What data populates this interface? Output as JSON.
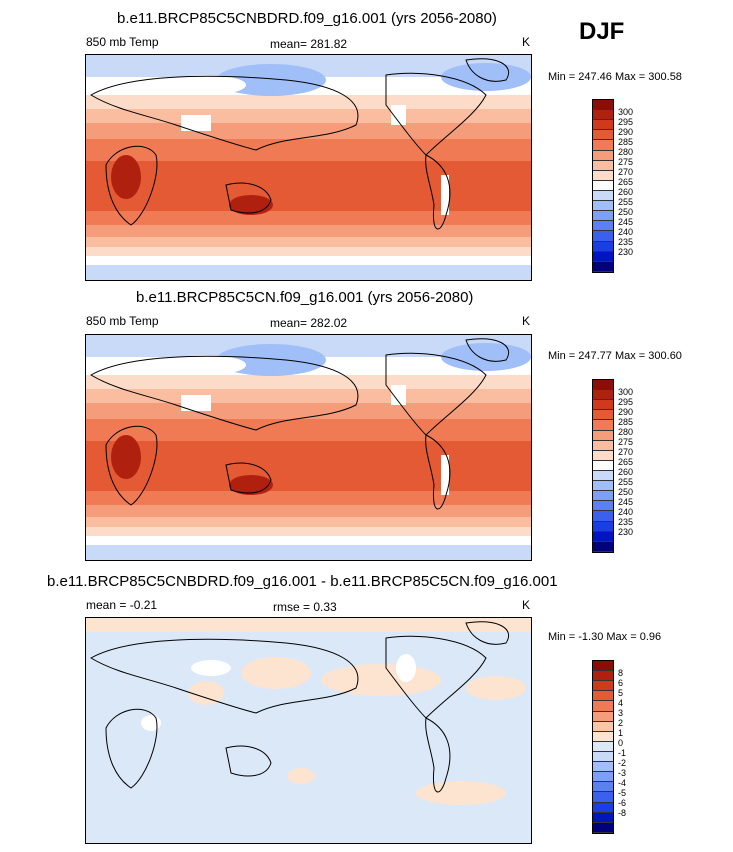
{
  "season": "DJF",
  "colors": {
    "abs_scale": [
      "#00007f",
      "#0015c0",
      "#1a3fe0",
      "#3b60ec",
      "#5a80f2",
      "#7ba0f6",
      "#a0bef8",
      "#c8daf8",
      "#ffffff",
      "#fcdcc8",
      "#fbbda0",
      "#f59d7a",
      "#ef7a54",
      "#e45a34",
      "#d03a1c",
      "#b0200f",
      "#8a0d06"
    ],
    "diff_scale": [
      "#00007f",
      "#0015c0",
      "#1a3fe0",
      "#3b60ec",
      "#5a80f2",
      "#7ba0f6",
      "#a0bef8",
      "#c8daf8",
      "#dbe8f8",
      "#fde4d0",
      "#fbc6a8",
      "#f59d7a",
      "#ef7a54",
      "#e45a34",
      "#d03a1c",
      "#b0200f",
      "#8a0d06"
    ],
    "land_line": "#000000"
  },
  "chart_data": [
    {
      "type": "heatmap",
      "title": "b.e11.BRCP85C5CNBDRD.f09_g16.001 (yrs 2056-2080)",
      "left_label": "850 mb Temp",
      "center_label": "mean= 281.82",
      "units": "K",
      "stats": "Min = 247.46 Max = 300.58",
      "min": 247.46,
      "max": 300.58,
      "mean": 281.82,
      "colorbar_levels": [
        "300",
        "295",
        "290",
        "285",
        "280",
        "275",
        "270",
        "265",
        "260",
        "255",
        "250",
        "245",
        "240",
        "235",
        "230"
      ]
    },
    {
      "type": "heatmap",
      "title": "b.e11.BRCP85C5CN.f09_g16.001 (yrs 2056-2080)",
      "left_label": "850 mb Temp",
      "center_label": "mean= 282.02",
      "units": "K",
      "stats": "Min = 247.77 Max = 300.60",
      "min": 247.77,
      "max": 300.6,
      "mean": 282.02,
      "colorbar_levels": [
        "300",
        "295",
        "290",
        "285",
        "280",
        "275",
        "270",
        "265",
        "260",
        "255",
        "250",
        "245",
        "240",
        "235",
        "230"
      ]
    },
    {
      "type": "heatmap",
      "title": "b.e11.BRCP85C5CNBDRD.f09_g16.001 - b.e11.BRCP85C5CN.f09_g16.001",
      "left_label": "mean =  -0.21",
      "center_label": "rmse =   0.33",
      "units": "K",
      "stats": "Min =  -1.30 Max =   0.96",
      "min": -1.3,
      "max": 0.96,
      "mean": -0.21,
      "rmse": 0.33,
      "colorbar_levels": [
        "8",
        "6",
        "5",
        "4",
        "3",
        "2",
        "1",
        "0",
        "-1",
        "-2",
        "-3",
        "-4",
        "-5",
        "-6",
        "-8"
      ]
    }
  ]
}
